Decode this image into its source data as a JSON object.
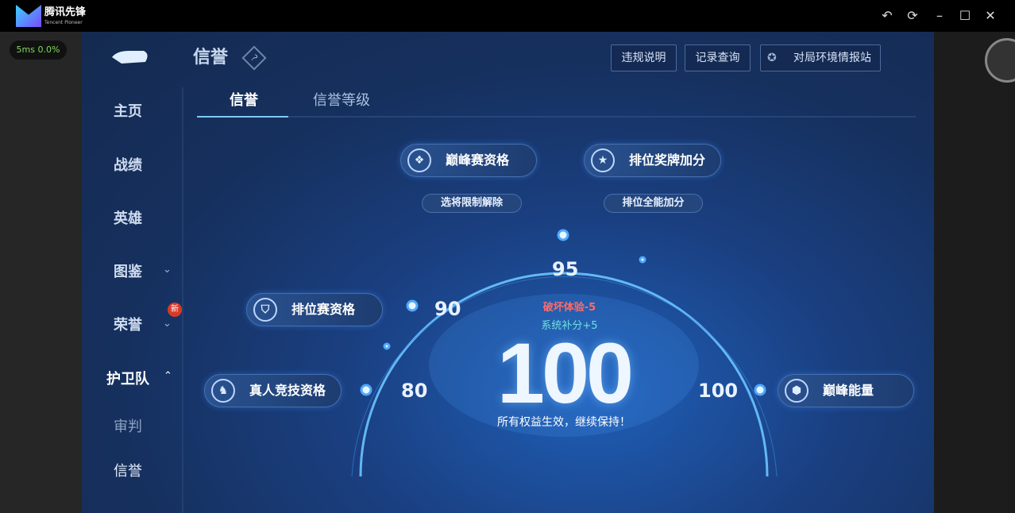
{
  "app": {
    "logo_text": "腾讯先锋",
    "logo_subtext": "Tencent Pioneer",
    "window_controls": [
      "undo-icon",
      "refresh-icon",
      "minimize-icon",
      "maximize-icon",
      "close-icon"
    ]
  },
  "perf": {
    "latency": "5ms",
    "loss": "0.0%"
  },
  "header": {
    "title": "信誉",
    "help": "?",
    "buttons": [
      "违规说明",
      "记录查询",
      "对局环境情报站"
    ]
  },
  "tabs": [
    {
      "label": "信誉",
      "active": true
    },
    {
      "label": "信誉等级",
      "active": false
    }
  ],
  "sidebar": {
    "items": [
      {
        "label": "主页"
      },
      {
        "label": "战绩"
      },
      {
        "label": "英雄"
      },
      {
        "label": "图鉴"
      },
      {
        "label": "荣誉",
        "badge": "新"
      },
      {
        "label": "护卫队",
        "active": true
      },
      {
        "label": "审判"
      },
      {
        "label": "信誉"
      }
    ]
  },
  "privileges": {
    "peak": "巅峰赛资格",
    "peak_sub": "选将限制解除",
    "medal": "排位奖牌加分",
    "medal_sub": "排位全能加分",
    "ranked": "排位赛资格",
    "real": "真人竞技资格",
    "energy": "巅峰能量"
  },
  "gauge": {
    "marks": [
      "80",
      "90",
      "95",
      "100"
    ],
    "score": "100",
    "penalty": "破坏体验-5",
    "bonus": "系统补分+5",
    "status": "所有权益生效，继续保持！"
  },
  "colors": {
    "accent": "#4fa8ff",
    "penalty": "#ff6b6b",
    "bonus": "#6ee0e0",
    "perf": "#7fdc5a"
  }
}
